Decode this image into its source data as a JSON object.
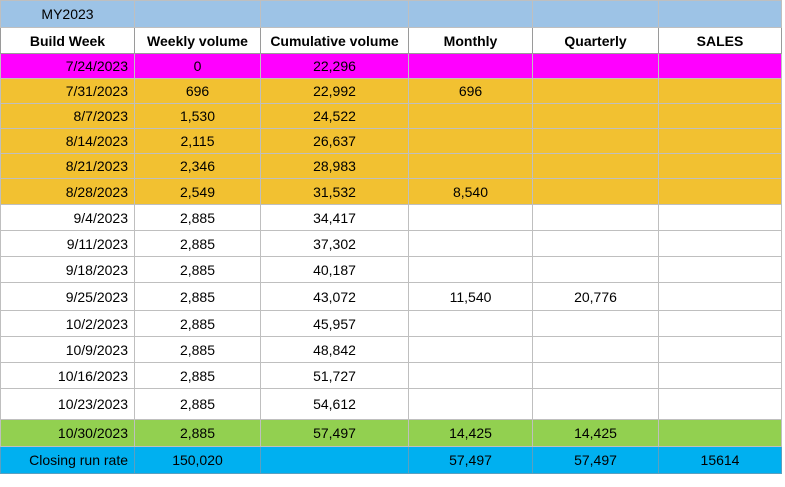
{
  "sheet": {
    "title": "MY2023",
    "headers": [
      "Build Week",
      "Weekly volume",
      "Cumulative volume",
      "Monthly",
      "Quarterly",
      "SALES"
    ],
    "rows": [
      {
        "week": "7/24/2023",
        "weekly": "0",
        "cumulative": "22,296",
        "monthly": "",
        "quarterly": "",
        "sales": ""
      },
      {
        "week": "7/31/2023",
        "weekly": "696",
        "cumulative": "22,992",
        "monthly": "696",
        "quarterly": "",
        "sales": ""
      },
      {
        "week": "8/7/2023",
        "weekly": "1,530",
        "cumulative": "24,522",
        "monthly": "",
        "quarterly": "",
        "sales": ""
      },
      {
        "week": "8/14/2023",
        "weekly": "2,115",
        "cumulative": "26,637",
        "monthly": "",
        "quarterly": "",
        "sales": ""
      },
      {
        "week": "8/21/2023",
        "weekly": "2,346",
        "cumulative": "28,983",
        "monthly": "",
        "quarterly": "",
        "sales": ""
      },
      {
        "week": "8/28/2023",
        "weekly": "2,549",
        "cumulative": "31,532",
        "monthly": "8,540",
        "quarterly": "",
        "sales": ""
      },
      {
        "week": "9/4/2023",
        "weekly": "2,885",
        "cumulative": "34,417",
        "monthly": "",
        "quarterly": "",
        "sales": ""
      },
      {
        "week": "9/11/2023",
        "weekly": "2,885",
        "cumulative": "37,302",
        "monthly": "",
        "quarterly": "",
        "sales": ""
      },
      {
        "week": "9/18/2023",
        "weekly": "2,885",
        "cumulative": "40,187",
        "monthly": "",
        "quarterly": "",
        "sales": ""
      },
      {
        "week": "9/25/2023",
        "weekly": "2,885",
        "cumulative": "43,072",
        "monthly": "11,540",
        "quarterly": "20,776",
        "sales": ""
      },
      {
        "week": "10/2/2023",
        "weekly": "2,885",
        "cumulative": "45,957",
        "monthly": "",
        "quarterly": "",
        "sales": ""
      },
      {
        "week": "10/9/2023",
        "weekly": "2,885",
        "cumulative": "48,842",
        "monthly": "",
        "quarterly": "",
        "sales": ""
      },
      {
        "week": "10/16/2023",
        "weekly": "2,885",
        "cumulative": "51,727",
        "monthly": "",
        "quarterly": "",
        "sales": ""
      },
      {
        "week": "10/23/2023",
        "weekly": "2,885",
        "cumulative": "54,612",
        "monthly": "",
        "quarterly": "",
        "sales": ""
      },
      {
        "week": "10/30/2023",
        "weekly": "2,885",
        "cumulative": "57,497",
        "monthly": "14,425",
        "quarterly": "14,425",
        "sales": ""
      }
    ],
    "closing": {
      "label": "Closing run rate",
      "weekly": "150,020",
      "cumulative": "",
      "monthly": "57,497",
      "quarterly": "57,497",
      "sales": "15614"
    }
  },
  "colors": {
    "title_fill": "#9dc3e6",
    "pink_fill": "#ff00ff",
    "orange_fill": "#f2c131",
    "green_fill": "#92d050",
    "blue_fill": "#00b0f0"
  }
}
